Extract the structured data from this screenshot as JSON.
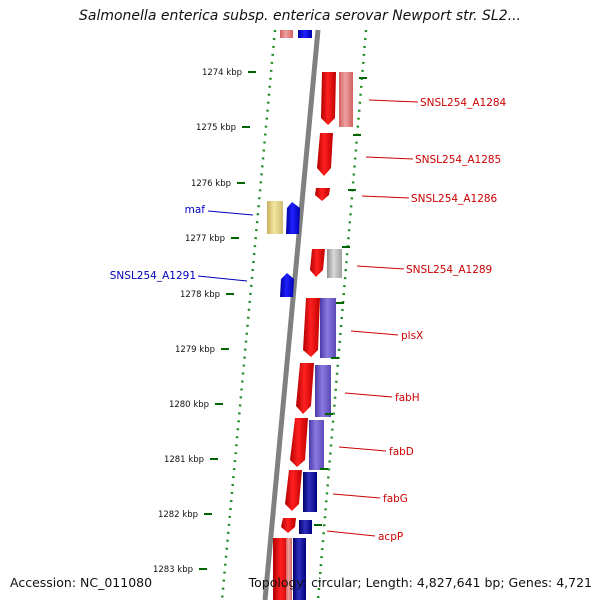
{
  "header": {
    "title": "Salmonella enterica subsp. enterica serovar Newport str. SL2..."
  },
  "footer": {
    "accession": "Accession: NC_011080",
    "topology": "Topology: circular; Length: 4,827,641 bp; Genes: 4,721"
  },
  "ruler": {
    "ticks": [
      "1274 kbp",
      "1275 kbp",
      "1276 kbp",
      "1277 kbp",
      "1278 kbp",
      "1279 kbp",
      "1280 kbp",
      "1281 kbp",
      "1282 kbp",
      "1283 kbp"
    ]
  },
  "genes": {
    "forward": [
      "SNSL254_A1284",
      "SNSL254_A1285",
      "SNSL254_A1286",
      "SNSL254_A1289",
      "plsX",
      "fabH",
      "fabD",
      "fabG",
      "acpP"
    ],
    "reverse": [
      "maf",
      "SNSL254_A1291"
    ]
  },
  "colors": {
    "forward_label": "#cc0000",
    "reverse_label": "#0000bb",
    "forward_gene": "#ff0000",
    "reverse_gene": "#0000ff",
    "backbone": "#808080",
    "dotted": "#228b22",
    "tick": "#006400"
  }
}
